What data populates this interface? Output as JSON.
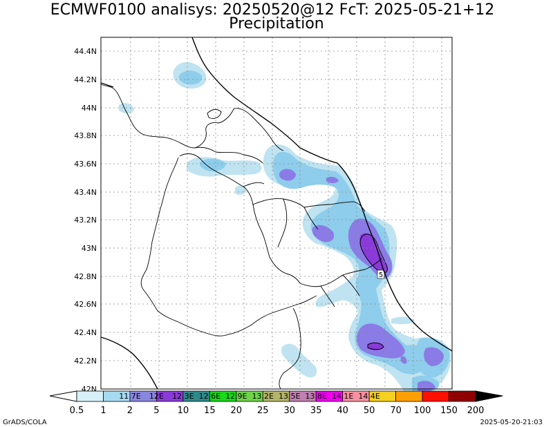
{
  "header": {
    "title_line1": "ECMWF0100 analisys: 20250520@12 FcT: 2025-05-21+12",
    "title_line2": "Precipitation"
  },
  "map": {
    "lat_labels": [
      "44.4N",
      "44.2N",
      "44N",
      "43.8N",
      "43.6N",
      "43.4N",
      "43.2N",
      "43N",
      "42.8N",
      "42.6N",
      "42.4N",
      "42.2N",
      "42N"
    ],
    "contour_label": "5",
    "colors": {
      "light_blue": "#bfe3f0",
      "sky_blue": "#8ecdeb",
      "lavender": "#8a7be6",
      "purple": "#8a3ad8",
      "border": "#000000",
      "grid": "#888888"
    }
  },
  "colorbar": {
    "inner_labels": [
      "11.7E",
      "12E",
      "12.3E",
      "12.6E",
      "12.9E",
      "13.2E",
      "13.5E",
      "13.8E",
      "14.1E",
      "14.4E"
    ],
    "level_labels": [
      "0.5",
      "1",
      "2",
      "5",
      "10",
      "15",
      "20",
      "25",
      "30",
      "35",
      "40",
      "50",
      "70",
      "100",
      "150",
      "200"
    ],
    "colors": [
      "#d8f0f8",
      "#a6daf0",
      "#8a86e0",
      "#8a3ad8",
      "#2e8a8a",
      "#18d818",
      "#6fd34a",
      "#b4b46a",
      "#c080b0",
      "#f000f0",
      "#f890a0",
      "#f4d020",
      "#ffa000",
      "#ff1000",
      "#900000"
    ]
  },
  "footer": {
    "left": "GrADS/COLA",
    "right": "2025-05-20-21:03"
  }
}
